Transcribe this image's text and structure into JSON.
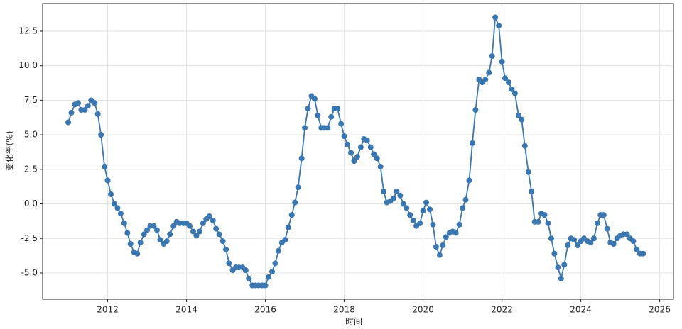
{
  "chart_data": {
    "type": "line",
    "xlabel": "时间",
    "ylabel": "变化率(%)",
    "x": [
      2011.0,
      2011.08,
      2011.17,
      2011.25,
      2011.33,
      2011.42,
      2011.5,
      2011.58,
      2011.67,
      2011.75,
      2011.83,
      2011.92,
      2012.0,
      2012.08,
      2012.17,
      2012.25,
      2012.33,
      2012.42,
      2012.5,
      2012.58,
      2012.67,
      2012.75,
      2012.83,
      2012.92,
      2013.0,
      2013.08,
      2013.17,
      2013.25,
      2013.33,
      2013.42,
      2013.5,
      2013.58,
      2013.67,
      2013.75,
      2013.83,
      2013.92,
      2014.0,
      2014.08,
      2014.17,
      2014.25,
      2014.33,
      2014.42,
      2014.5,
      2014.58,
      2014.67,
      2014.75,
      2014.83,
      2014.92,
      2015.0,
      2015.08,
      2015.17,
      2015.25,
      2015.33,
      2015.42,
      2015.5,
      2015.58,
      2015.67,
      2015.75,
      2015.83,
      2015.92,
      2016.0,
      2016.08,
      2016.17,
      2016.25,
      2016.33,
      2016.42,
      2016.5,
      2016.58,
      2016.67,
      2016.75,
      2016.83,
      2016.92,
      2017.0,
      2017.08,
      2017.17,
      2017.25,
      2017.33,
      2017.42,
      2017.5,
      2017.58,
      2017.67,
      2017.75,
      2017.83,
      2017.92,
      2018.0,
      2018.08,
      2018.17,
      2018.25,
      2018.33,
      2018.42,
      2018.5,
      2018.58,
      2018.67,
      2018.75,
      2018.83,
      2018.92,
      2019.0,
      2019.08,
      2019.17,
      2019.25,
      2019.33,
      2019.42,
      2019.5,
      2019.58,
      2019.67,
      2019.75,
      2019.83,
      2019.92,
      2020.0,
      2020.08,
      2020.17,
      2020.25,
      2020.33,
      2020.42,
      2020.5,
      2020.58,
      2020.67,
      2020.75,
      2020.83,
      2020.92,
      2021.0,
      2021.08,
      2021.17,
      2021.25,
      2021.33,
      2021.42,
      2021.5,
      2021.58,
      2021.67,
      2021.75,
      2021.83,
      2021.92,
      2022.0,
      2022.08,
      2022.17,
      2022.25,
      2022.33,
      2022.42,
      2022.5,
      2022.58,
      2022.67,
      2022.75,
      2022.83,
      2022.92,
      2023.0,
      2023.08,
      2023.17,
      2023.25,
      2023.33,
      2023.42,
      2023.5,
      2023.58,
      2023.67,
      2023.75,
      2023.83,
      2023.92,
      2024.0,
      2024.08,
      2024.17,
      2024.25,
      2024.33,
      2024.42,
      2024.5,
      2024.58,
      2024.67,
      2024.75,
      2024.83,
      2024.92,
      2025.0,
      2025.08,
      2025.17,
      2025.25,
      2025.33,
      2025.42,
      2025.5,
      2025.58
    ],
    "series": [
      {
        "color": "#3a76af",
        "values": [
          5.9,
          6.6,
          7.2,
          7.3,
          6.8,
          6.8,
          7.1,
          7.5,
          7.3,
          6.5,
          5.0,
          2.7,
          1.7,
          0.7,
          0.0,
          -0.3,
          -0.7,
          -1.4,
          -2.1,
          -2.9,
          -3.5,
          -3.6,
          -2.8,
          -2.2,
          -1.9,
          -1.6,
          -1.6,
          -1.9,
          -2.6,
          -2.9,
          -2.7,
          -2.2,
          -1.6,
          -1.3,
          -1.4,
          -1.4,
          -1.4,
          -1.6,
          -2.0,
          -2.3,
          -2.0,
          -1.4,
          -1.1,
          -0.9,
          -1.2,
          -1.8,
          -2.2,
          -2.7,
          -3.3,
          -4.3,
          -4.8,
          -4.6,
          -4.6,
          -4.6,
          -4.8,
          -5.4,
          -5.9,
          -5.9,
          -5.9,
          -5.9,
          -5.9,
          -5.3,
          -4.9,
          -4.3,
          -3.4,
          -2.8,
          -2.6,
          -1.7,
          -0.8,
          0.1,
          1.2,
          3.3,
          5.5,
          6.9,
          7.8,
          7.6,
          6.4,
          5.5,
          5.5,
          5.5,
          6.3,
          6.9,
          6.9,
          5.8,
          4.9,
          4.3,
          3.7,
          3.1,
          3.4,
          4.1,
          4.7,
          4.6,
          4.1,
          3.6,
          3.3,
          2.7,
          0.9,
          0.1,
          0.2,
          0.4,
          0.9,
          0.6,
          0.0,
          -0.3,
          -0.8,
          -1.2,
          -1.6,
          -1.4,
          -0.5,
          0.1,
          -0.4,
          -1.5,
          -3.1,
          -3.7,
          -3.0,
          -2.4,
          -2.1,
          -2.0,
          -2.1,
          -1.5,
          -0.3,
          0.3,
          1.7,
          4.4,
          6.8,
          9.0,
          8.8,
          9.0,
          9.5,
          10.7,
          13.5,
          12.9,
          10.3,
          9.1,
          8.8,
          8.3,
          8.0,
          6.4,
          6.1,
          4.2,
          2.3,
          0.9,
          -1.3,
          -1.3,
          -0.7,
          -0.8,
          -1.4,
          -2.5,
          -3.6,
          -4.6,
          -5.4,
          -4.4,
          -3.0,
          -2.5,
          -2.6,
          -3.0,
          -2.7,
          -2.5,
          -2.7,
          -2.8,
          -2.5,
          -1.4,
          -0.8,
          -0.8,
          -1.8,
          -2.8,
          -2.9,
          -2.5,
          -2.3,
          -2.2,
          -2.2,
          -2.5,
          -2.7,
          -3.3,
          -3.6,
          -3.6
        ]
      }
    ],
    "xlim": [
      2010.35,
      2026.35
    ],
    "xticks": [
      2012,
      2014,
      2016,
      2018,
      2020,
      2022,
      2024,
      2026
    ],
    "ylim": [
      -6.9,
      14.5
    ],
    "yticks": [
      {
        "value": -5,
        "label": "-5.0"
      },
      -2.5,
      {
        "value": 0,
        "label": "0.0"
      },
      2.5,
      {
        "value": 5,
        "label": "5.0"
      },
      7.5,
      {
        "value": 10,
        "label": "10.0"
      },
      12.5
    ],
    "grid": true
  }
}
